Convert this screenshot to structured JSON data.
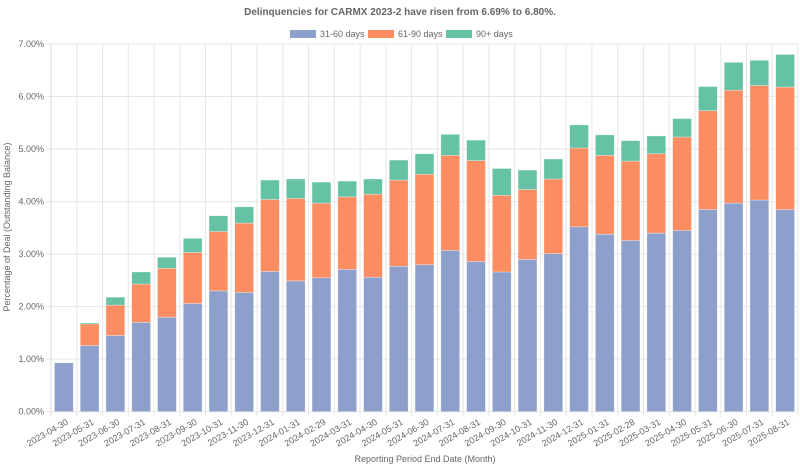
{
  "chart_data": {
    "type": "bar",
    "stacked": true,
    "title": "Delinquencies for CARMX 2023-2 have risen from 6.69% to 6.80%.",
    "xlabel": "Reporting Period End Date (Month)",
    "ylabel": "Percentage of Deal (Outstanding Balance)",
    "ylim": [
      0,
      7
    ],
    "yticks": [
      0,
      1,
      2,
      3,
      4,
      5,
      6,
      7
    ],
    "ytick_labels": [
      "0.00%",
      "1.00%",
      "2.00%",
      "3.00%",
      "4.00%",
      "5.00%",
      "6.00%",
      "7.00%"
    ],
    "grid": true,
    "legend_position": "top-center",
    "categories": [
      "2023-04-30",
      "2023-05-31",
      "2023-06-30",
      "2023-07-31",
      "2023-08-31",
      "2023-09-30",
      "2023-10-31",
      "2023-11-30",
      "2023-12-31",
      "2024-01-31",
      "2024-02-29",
      "2024-03-31",
      "2024-04-30",
      "2024-05-31",
      "2024-06-30",
      "2024-07-31",
      "2024-08-31",
      "2024-09-30",
      "2024-10-31",
      "2024-11-30",
      "2024-12-31",
      "2025-01-31",
      "2025-02-28",
      "2025-03-31",
      "2025-04-30",
      "2025-05-31",
      "2025-06-30",
      "2025-07-31",
      "2025-08-31"
    ],
    "series": [
      {
        "name": "31-60 days",
        "color": "#8da0cb",
        "values": [
          0.93,
          1.26,
          1.45,
          1.7,
          1.8,
          2.06,
          2.3,
          2.27,
          2.67,
          2.49,
          2.55,
          2.71,
          2.56,
          2.77,
          2.8,
          3.07,
          2.86,
          2.66,
          2.9,
          3.01,
          3.52,
          3.38,
          3.26,
          3.4,
          3.45,
          3.85,
          3.97,
          4.03,
          3.85
        ]
      },
      {
        "name": "61-90 days",
        "color": "#fc8d62",
        "values": [
          0.0,
          0.41,
          0.58,
          0.73,
          0.93,
          0.97,
          1.13,
          1.32,
          1.37,
          1.57,
          1.42,
          1.38,
          1.58,
          1.64,
          1.72,
          1.81,
          1.92,
          1.46,
          1.33,
          1.42,
          1.5,
          1.5,
          1.51,
          1.51,
          1.78,
          1.88,
          2.15,
          2.18,
          2.33
        ]
      },
      {
        "name": "90+ days",
        "color": "#66c2a5",
        "values": [
          0.0,
          0.02,
          0.15,
          0.23,
          0.21,
          0.27,
          0.3,
          0.31,
          0.37,
          0.37,
          0.4,
          0.3,
          0.29,
          0.38,
          0.39,
          0.4,
          0.39,
          0.51,
          0.37,
          0.38,
          0.44,
          0.39,
          0.39,
          0.34,
          0.35,
          0.46,
          0.53,
          0.48,
          0.62
        ]
      }
    ]
  }
}
